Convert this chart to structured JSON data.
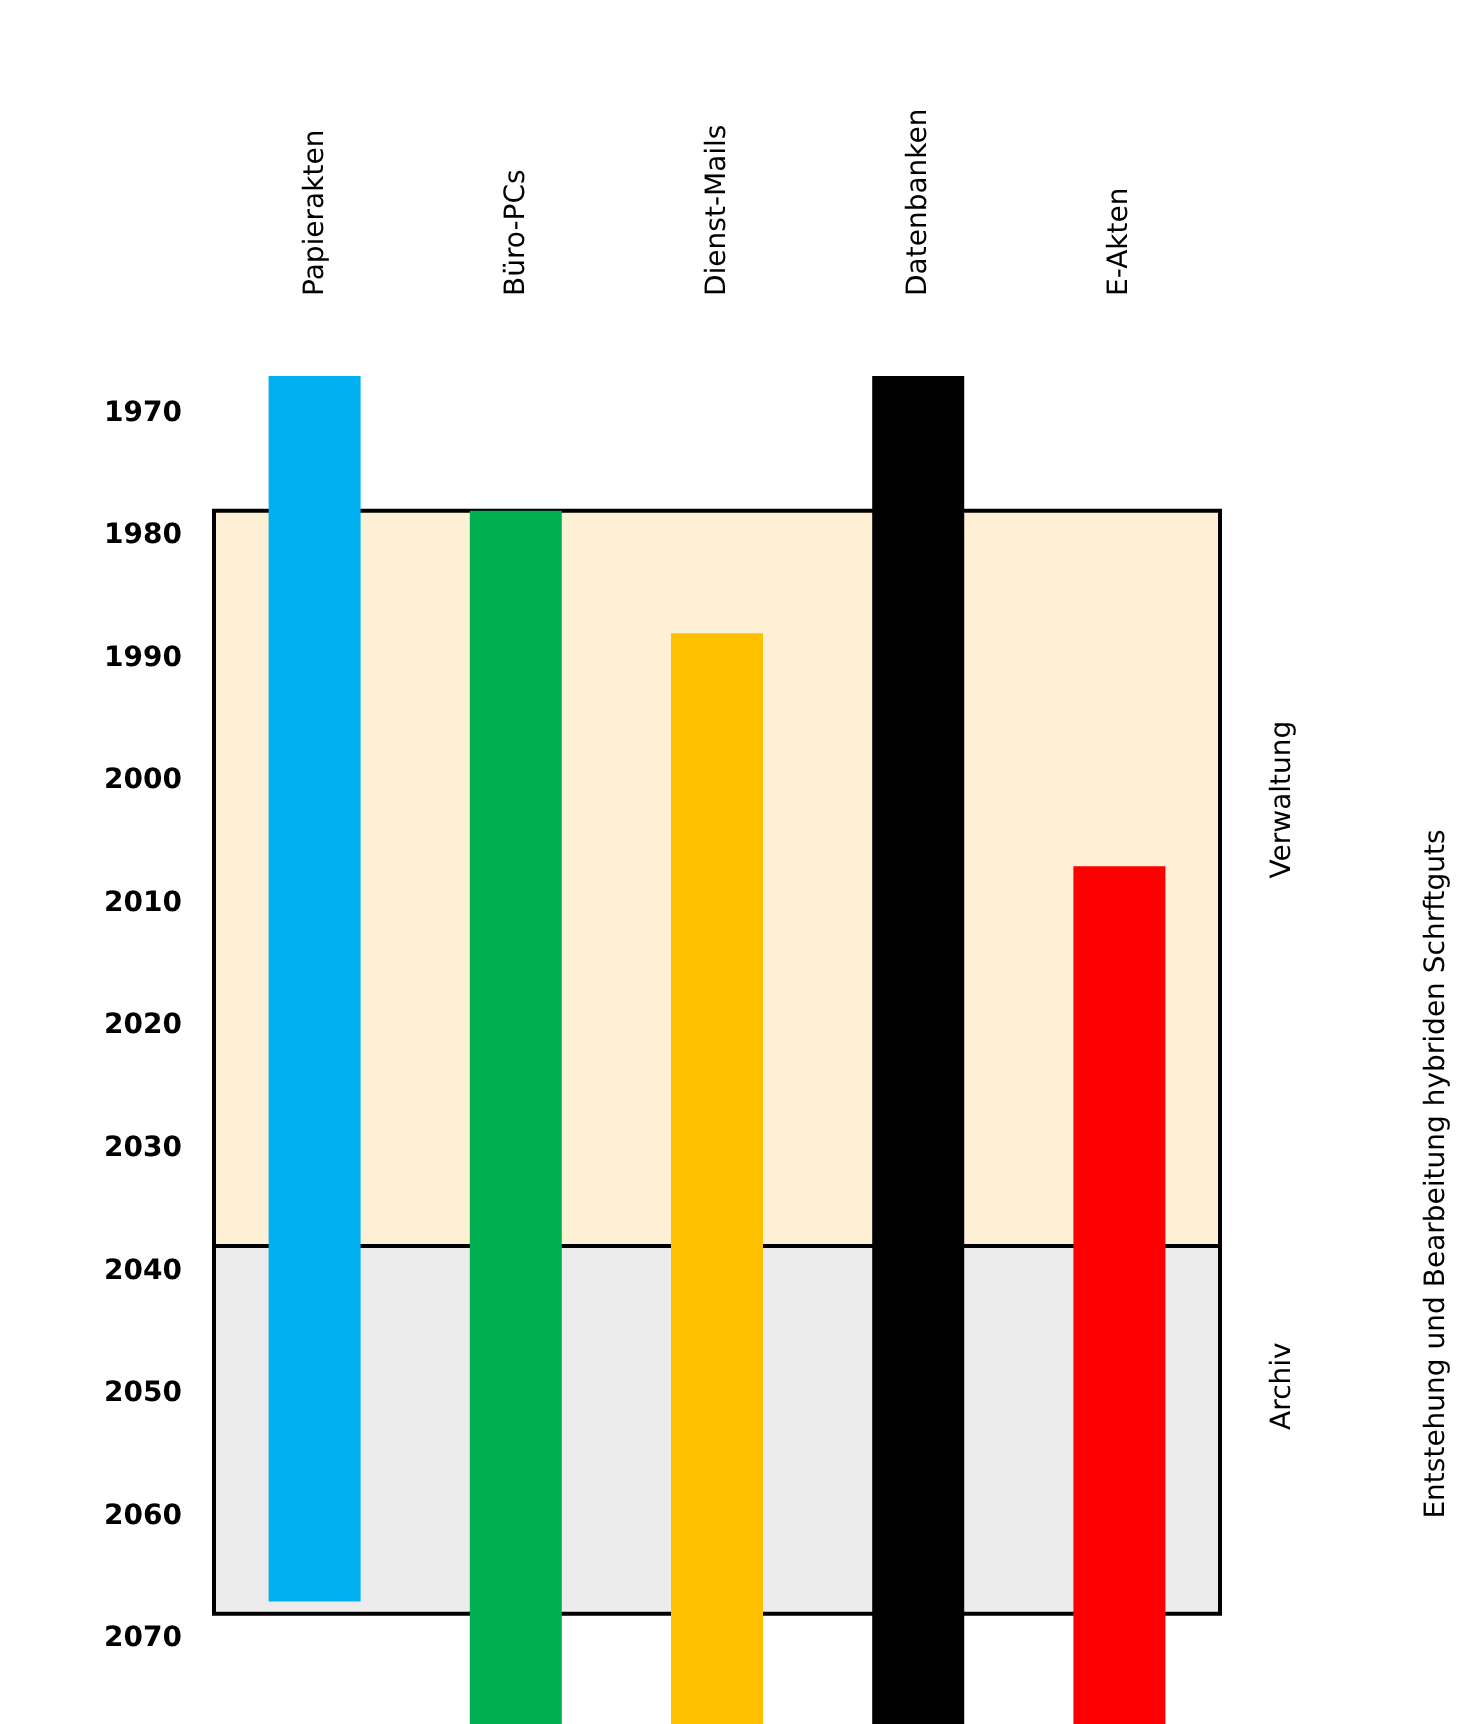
{
  "chart_data": {
    "type": "bar",
    "categories": [
      "Papierakten",
      "Büro-PCs",
      "Dienst-Mails",
      "Datenbanken",
      "E-Akten"
    ],
    "values": [
      100,
      99,
      89,
      110,
      70
    ],
    "base": [
      1967,
      1978,
      1988,
      1967,
      2007
    ],
    "colors": [
      "#00b0f0",
      "#00b050",
      "#ffc000",
      "#000000",
      "#ff0000"
    ],
    "ylim": [
      2077,
      1967
    ],
    "yticks": [
      1970,
      1980,
      1990,
      2000,
      2010,
      2020,
      2030,
      2040,
      2050,
      2060,
      2070
    ],
    "annotations": [
      "Entstehung und Bearbeitung hybriden Schrftguts"
    ],
    "bands": [
      {
        "axis": "y",
        "from": 1978,
        "to": 2038,
        "label": "Verwaltung",
        "color": "#fdf0d5"
      },
      {
        "axis": "y",
        "from": 2038,
        "to": 2068,
        "label": "Archiv",
        "color": "#ececec"
      }
    ],
    "grid": false
  }
}
